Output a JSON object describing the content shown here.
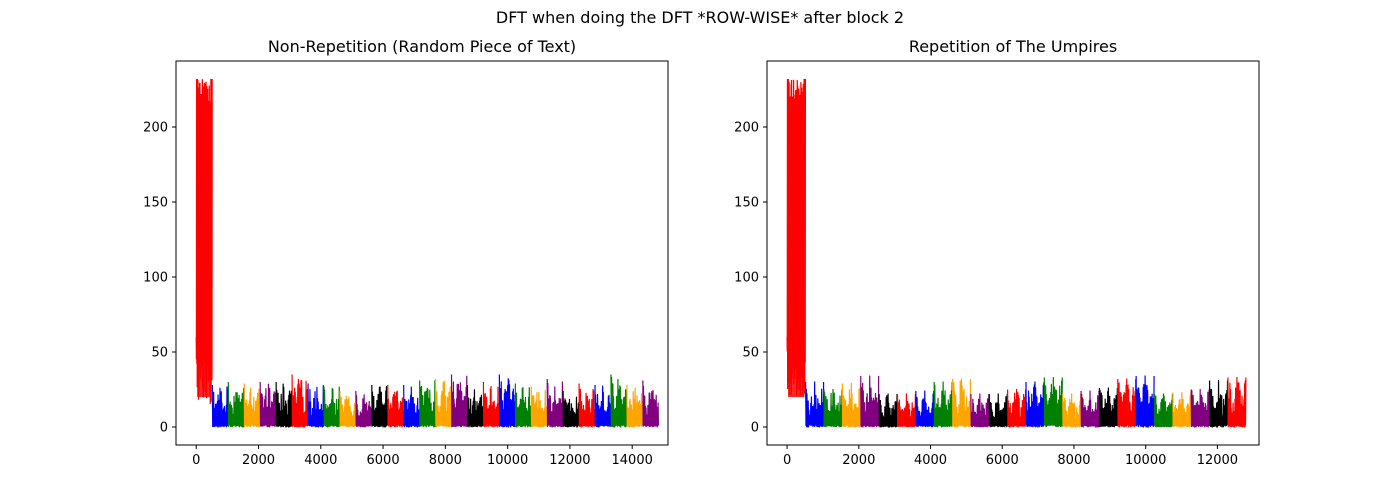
{
  "figure": {
    "title": "DFT when doing the DFT *ROW-WISE* after block 2"
  },
  "chart_data": [
    {
      "type": "line",
      "title": "Non-Repetition (Random Piece of Text)",
      "xlabel": "",
      "ylabel": "",
      "xlim": [
        -650,
        15150
      ],
      "ylim": [
        -12,
        244
      ],
      "xticks": [
        0,
        2000,
        4000,
        6000,
        8000,
        10000,
        12000,
        14000
      ],
      "yticks": [
        0,
        50,
        100,
        150,
        200
      ],
      "grid": false,
      "legend": "none",
      "peak": {
        "x_start": 0,
        "x_end": 510,
        "max": 232,
        "upper_band_min": 100
      },
      "segment_width": 512,
      "segments": [
        {
          "x0": 512,
          "color": "#0000ff",
          "max": 28
        },
        {
          "x0": 1024,
          "color": "#008000",
          "max": 30
        },
        {
          "x0": 1536,
          "color": "#ffa500",
          "max": 29
        },
        {
          "x0": 2048,
          "color": "#800080",
          "max": 30
        },
        {
          "x0": 2560,
          "color": "#000000",
          "max": 30
        },
        {
          "x0": 3072,
          "color": "#ff0000",
          "max": 35
        },
        {
          "x0": 3584,
          "color": "#0000ff",
          "max": 29
        },
        {
          "x0": 4096,
          "color": "#008000",
          "max": 27
        },
        {
          "x0": 4608,
          "color": "#ffa500",
          "max": 24
        },
        {
          "x0": 5120,
          "color": "#800080",
          "max": 24
        },
        {
          "x0": 5632,
          "color": "#000000",
          "max": 28
        },
        {
          "x0": 6144,
          "color": "#ff0000",
          "max": 28
        },
        {
          "x0": 6656,
          "color": "#0000ff",
          "max": 28
        },
        {
          "x0": 7168,
          "color": "#008000",
          "max": 31
        },
        {
          "x0": 7680,
          "color": "#ffa500",
          "max": 32
        },
        {
          "x0": 8192,
          "color": "#800080",
          "max": 35
        },
        {
          "x0": 8704,
          "color": "#000000",
          "max": 28
        },
        {
          "x0": 9216,
          "color": "#ff0000",
          "max": 30
        },
        {
          "x0": 9728,
          "color": "#0000ff",
          "max": 35
        },
        {
          "x0": 10240,
          "color": "#008000",
          "max": 29
        },
        {
          "x0": 10752,
          "color": "#ffa500",
          "max": 27
        },
        {
          "x0": 11264,
          "color": "#800080",
          "max": 32
        },
        {
          "x0": 11776,
          "color": "#000000",
          "max": 24
        },
        {
          "x0": 12288,
          "color": "#ff0000",
          "max": 29
        },
        {
          "x0": 12800,
          "color": "#0000ff",
          "max": 28
        },
        {
          "x0": 13312,
          "color": "#008000",
          "max": 35
        },
        {
          "x0": 13824,
          "color": "#ffa500",
          "max": 28
        },
        {
          "x0": 14336,
          "color": "#800080",
          "max": 31
        }
      ]
    },
    {
      "type": "line",
      "title": "Repetition of The Umpires",
      "xlabel": "",
      "ylabel": "",
      "xlim": [
        -560,
        13160
      ],
      "ylim": [
        -12,
        244
      ],
      "xticks": [
        0,
        2000,
        4000,
        6000,
        8000,
        10000,
        12000
      ],
      "yticks": [
        0,
        50,
        100,
        150,
        200
      ],
      "grid": false,
      "legend": "none",
      "peak": {
        "x_start": 0,
        "x_end": 510,
        "max": 232,
        "upper_band_min": 100
      },
      "segment_width": 512,
      "segments": [
        {
          "x0": 512,
          "color": "#0000ff",
          "max": 30
        },
        {
          "x0": 1024,
          "color": "#008000",
          "max": 25
        },
        {
          "x0": 1536,
          "color": "#ffa500",
          "max": 29
        },
        {
          "x0": 2048,
          "color": "#800080",
          "max": 34
        },
        {
          "x0": 2560,
          "color": "#000000",
          "max": 22
        },
        {
          "x0": 3072,
          "color": "#ff0000",
          "max": 22
        },
        {
          "x0": 3584,
          "color": "#0000ff",
          "max": 24
        },
        {
          "x0": 4096,
          "color": "#008000",
          "max": 30
        },
        {
          "x0": 4608,
          "color": "#ffa500",
          "max": 32
        },
        {
          "x0": 5120,
          "color": "#800080",
          "max": 22
        },
        {
          "x0": 5632,
          "color": "#000000",
          "max": 22
        },
        {
          "x0": 6144,
          "color": "#ff0000",
          "max": 25
        },
        {
          "x0": 6656,
          "color": "#0000ff",
          "max": 30
        },
        {
          "x0": 7168,
          "color": "#008000",
          "max": 33
        },
        {
          "x0": 7680,
          "color": "#ffa500",
          "max": 22
        },
        {
          "x0": 8192,
          "color": "#800080",
          "max": 24
        },
        {
          "x0": 8704,
          "color": "#000000",
          "max": 26
        },
        {
          "x0": 9216,
          "color": "#ff0000",
          "max": 32
        },
        {
          "x0": 9728,
          "color": "#0000ff",
          "max": 34
        },
        {
          "x0": 10240,
          "color": "#008000",
          "max": 22
        },
        {
          "x0": 10752,
          "color": "#ffa500",
          "max": 23
        },
        {
          "x0": 11264,
          "color": "#800080",
          "max": 25
        },
        {
          "x0": 11776,
          "color": "#000000",
          "max": 31
        },
        {
          "x0": 12288,
          "color": "#ff0000",
          "max": 33
        }
      ]
    }
  ]
}
